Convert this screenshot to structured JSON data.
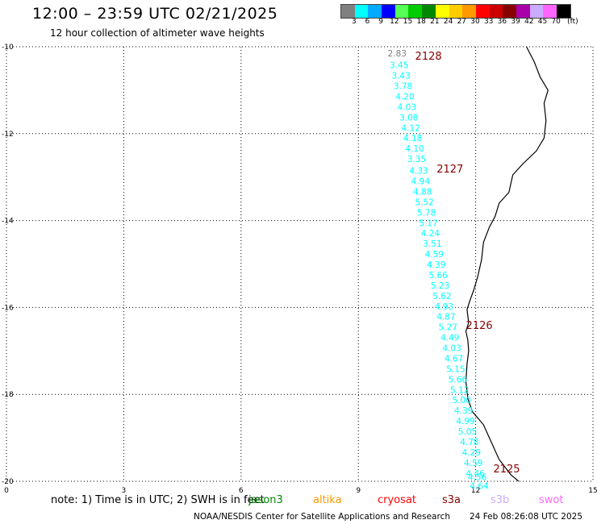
{
  "header": {
    "title": "12:00 – 23:59 UTC 02/21/2025",
    "subtitle": "12 hour collection of altimeter wave heights"
  },
  "colorbar": {
    "unit_label": "(ft)",
    "levels": [
      "3",
      "6",
      "9",
      "12",
      "15",
      "18",
      "21",
      "24",
      "27",
      "30",
      "33",
      "36",
      "39",
      "42",
      "45",
      "70"
    ],
    "colors": [
      "#808080",
      "#00ffff",
      "#00aaff",
      "#0000ff",
      "#55ff55",
      "#00cc00",
      "#008800",
      "#ffff00",
      "#ffcc00",
      "#ff9900",
      "#ff0000",
      "#cc0000",
      "#880000",
      "#aa00aa",
      "#ccaaff",
      "#ff66ff",
      "#000000"
    ]
  },
  "map": {
    "lon_range": [
      0,
      15
    ],
    "lat_range": [
      -20,
      -10
    ],
    "x_ticks": [
      "0",
      "3",
      "6",
      "9",
      "12",
      "15"
    ],
    "y_ticks": [
      "-10",
      "-12",
      "-14",
      "-16",
      "-18",
      "-20"
    ],
    "grid": true
  },
  "chart_data": {
    "type": "scatter",
    "value_unit": "ft",
    "passes": [
      {
        "label": "2128",
        "lat": -10.2
      },
      {
        "label": "2127",
        "lat": -12.8
      },
      {
        "label": "2126",
        "lat": -16.4
      },
      {
        "label": "2125",
        "lat": -19.7
      }
    ],
    "track": [
      {
        "lon": 9.75,
        "lat": -10.15,
        "swh": "2.83",
        "color": "#808080"
      },
      {
        "lon": 9.8,
        "lat": -10.42,
        "swh": "3.45",
        "color": "#00ffff"
      },
      {
        "lon": 9.85,
        "lat": -10.66,
        "swh": "3.43",
        "color": "#00ffff"
      },
      {
        "lon": 9.9,
        "lat": -10.9,
        "swh": "3.78",
        "color": "#00ffff"
      },
      {
        "lon": 9.95,
        "lat": -11.14,
        "swh": "4.20",
        "color": "#00ffff"
      },
      {
        "lon": 10.0,
        "lat": -11.38,
        "swh": "4.03",
        "color": "#00ffff"
      },
      {
        "lon": 10.05,
        "lat": -11.62,
        "swh": "3.08",
        "color": "#00ffff"
      },
      {
        "lon": 10.1,
        "lat": -11.86,
        "swh": "4.12",
        "color": "#00ffff"
      },
      {
        "lon": 10.15,
        "lat": -12.1,
        "swh": "4.18",
        "color": "#00ffff"
      },
      {
        "lon": 10.2,
        "lat": -12.34,
        "swh": "4.10",
        "color": "#00ffff"
      },
      {
        "lon": 10.25,
        "lat": -12.58,
        "swh": "3.35",
        "color": "#00ffff"
      },
      {
        "lon": 10.3,
        "lat": -12.85,
        "swh": "4.33",
        "color": "#00ffff"
      },
      {
        "lon": 10.35,
        "lat": -13.09,
        "swh": "4.94",
        "color": "#00ffff"
      },
      {
        "lon": 10.4,
        "lat": -13.33,
        "swh": "4.88",
        "color": "#00ffff"
      },
      {
        "lon": 10.45,
        "lat": -13.57,
        "swh": "5.52",
        "color": "#00ffff"
      },
      {
        "lon": 10.5,
        "lat": -13.81,
        "swh": "5.78",
        "color": "#00ffff"
      },
      {
        "lon": 10.55,
        "lat": -14.05,
        "swh": "5.17",
        "color": "#00ffff"
      },
      {
        "lon": 10.6,
        "lat": -14.29,
        "swh": "4.24",
        "color": "#00ffff"
      },
      {
        "lon": 10.65,
        "lat": -14.53,
        "swh": "3.51",
        "color": "#00ffff"
      },
      {
        "lon": 10.7,
        "lat": -14.77,
        "swh": "4.59",
        "color": "#00ffff"
      },
      {
        "lon": 10.75,
        "lat": -15.01,
        "swh": "4.39",
        "color": "#00ffff"
      },
      {
        "lon": 10.8,
        "lat": -15.25,
        "swh": "5.66",
        "color": "#00ffff"
      },
      {
        "lon": 10.85,
        "lat": -15.49,
        "swh": "5.23",
        "color": "#00ffff"
      },
      {
        "lon": 10.9,
        "lat": -15.73,
        "swh": "5.62",
        "color": "#00ffff"
      },
      {
        "lon": 10.95,
        "lat": -15.97,
        "swh": "4.93",
        "color": "#00ffff"
      },
      {
        "lon": 11.0,
        "lat": -16.21,
        "swh": "4.87",
        "color": "#00ffff"
      },
      {
        "lon": 11.05,
        "lat": -16.45,
        "swh": "5.27",
        "color": "#00ffff"
      },
      {
        "lon": 11.1,
        "lat": -16.69,
        "swh": "4.49",
        "color": "#00ffff"
      },
      {
        "lon": 11.15,
        "lat": -16.93,
        "swh": "4.03",
        "color": "#00ffff"
      },
      {
        "lon": 11.2,
        "lat": -17.17,
        "swh": "4.67",
        "color": "#00ffff"
      },
      {
        "lon": 11.25,
        "lat": -17.41,
        "swh": "5.15",
        "color": "#00ffff"
      },
      {
        "lon": 11.3,
        "lat": -17.65,
        "swh": "5.66",
        "color": "#00ffff"
      },
      {
        "lon": 11.35,
        "lat": -17.89,
        "swh": "5.12",
        "color": "#00ffff"
      },
      {
        "lon": 11.4,
        "lat": -18.13,
        "swh": "5.00",
        "color": "#00ffff"
      },
      {
        "lon": 11.45,
        "lat": -18.37,
        "swh": "4.39",
        "color": "#00ffff"
      },
      {
        "lon": 11.5,
        "lat": -18.61,
        "swh": "4.99",
        "color": "#00ffff"
      },
      {
        "lon": 11.55,
        "lat": -18.85,
        "swh": "5.05",
        "color": "#00ffff"
      },
      {
        "lon": 11.6,
        "lat": -19.09,
        "swh": "4.78",
        "color": "#00ffff"
      },
      {
        "lon": 11.65,
        "lat": -19.33,
        "swh": "4.29",
        "color": "#00ffff"
      },
      {
        "lon": 11.7,
        "lat": -19.57,
        "swh": "4.59",
        "color": "#00ffff"
      },
      {
        "lon": 11.75,
        "lat": -19.81,
        "swh": "4.46",
        "color": "#00ffff"
      },
      {
        "lon": 11.8,
        "lat": -19.9,
        "swh": "4.56",
        "color": "#00ffff"
      },
      {
        "lon": 11.85,
        "lat": -20.1,
        "swh": "4.64",
        "color": "#00ffff"
      }
    ],
    "coastline": [
      [
        13.3,
        -10.0
      ],
      [
        13.5,
        -10.35
      ],
      [
        13.65,
        -10.7
      ],
      [
        13.85,
        -11.0
      ],
      [
        13.75,
        -11.3
      ],
      [
        13.8,
        -11.7
      ],
      [
        13.75,
        -12.1
      ],
      [
        13.55,
        -12.4
      ],
      [
        13.2,
        -12.7
      ],
      [
        12.95,
        -12.95
      ],
      [
        12.85,
        -13.35
      ],
      [
        12.6,
        -13.6
      ],
      [
        12.5,
        -13.9
      ],
      [
        12.35,
        -14.15
      ],
      [
        12.2,
        -14.5
      ],
      [
        12.15,
        -14.9
      ],
      [
        12.05,
        -15.3
      ],
      [
        11.95,
        -15.6
      ],
      [
        11.85,
        -15.85
      ],
      [
        11.78,
        -16.05
      ],
      [
        11.82,
        -16.35
      ],
      [
        11.75,
        -16.55
      ],
      [
        11.8,
        -16.75
      ],
      [
        11.82,
        -17.0
      ],
      [
        11.78,
        -17.3
      ],
      [
        11.75,
        -17.7
      ],
      [
        11.8,
        -18.1
      ],
      [
        11.92,
        -18.4
      ],
      [
        12.2,
        -18.7
      ],
      [
        12.4,
        -19.1
      ],
      [
        12.6,
        -19.5
      ],
      [
        12.9,
        -19.85
      ],
      [
        13.1,
        -20.0
      ]
    ]
  },
  "footer": {
    "note": "note: 1) Time is in UTC; 2) SWH is in feet",
    "satellites": [
      {
        "name": "jason3",
        "color": "#008800"
      },
      {
        "name": "altika",
        "color": "#ff9900"
      },
      {
        "name": "cryosat",
        "color": "#ff0000"
      },
      {
        "name": "s3a",
        "color": "#880000"
      },
      {
        "name": "s3b",
        "color": "#ccaaff"
      },
      {
        "name": "swot",
        "color": "#ff66ff"
      }
    ],
    "credit": "NOAA/NESDIS Center for Satellite Applications and Research",
    "timestamp": "24 Feb 08:26:08 UTC 2025"
  }
}
